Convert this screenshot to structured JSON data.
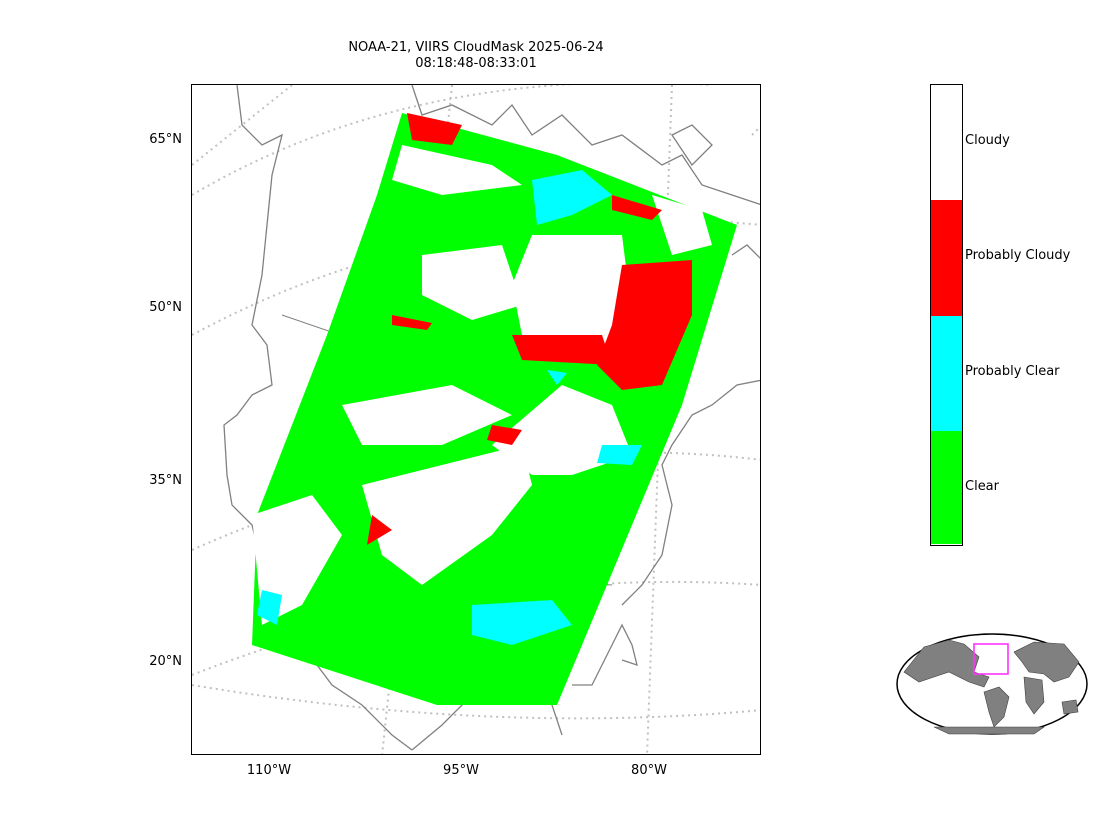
{
  "title": {
    "line1": "NOAA-21, VIIRS CloudMask 2025-06-24",
    "line2": "08:18:48-08:33:01"
  },
  "map": {
    "lat_labels": [
      "65°N",
      "50°N",
      "35°N",
      "20°N"
    ],
    "lon_labels": [
      "110°W",
      "95°W",
      "80°W"
    ],
    "gridline_style": "dotted grey",
    "coastline_color": "#808080"
  },
  "legend": {
    "categories": [
      {
        "label": "Cloudy",
        "color": "#ffffff"
      },
      {
        "label": "Probably Cloudy",
        "color": "#ff0000"
      },
      {
        "label": "Probably Clear",
        "color": "#00ffff"
      },
      {
        "label": "Clear",
        "color": "#00ff00"
      }
    ]
  },
  "inset": {
    "highlight_color": "#ff33ff",
    "land_color": "#808080"
  }
}
